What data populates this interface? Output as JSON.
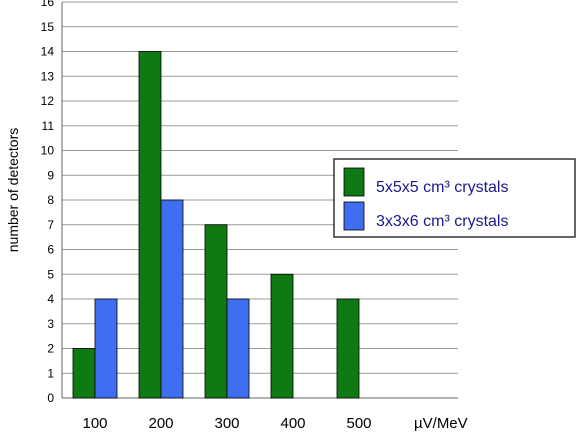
{
  "chart_data": {
    "type": "bar",
    "categories": [
      "100",
      "200",
      "300",
      "400",
      "500"
    ],
    "x_unit_label": "µV/MeV",
    "ylabel": "number of detectors",
    "ylim": [
      0,
      16
    ],
    "y_tick_step": 1,
    "grid": true,
    "legend_position": "right",
    "series": [
      {
        "name": "5x5x5 cm³ crystals",
        "color": "#0f7a14",
        "values": [
          2,
          14,
          7,
          5,
          4
        ]
      },
      {
        "name": "3x3x6 cm³ crystals",
        "color": "#3f6ff0",
        "values": [
          4,
          8,
          4,
          0,
          0
        ]
      }
    ]
  }
}
